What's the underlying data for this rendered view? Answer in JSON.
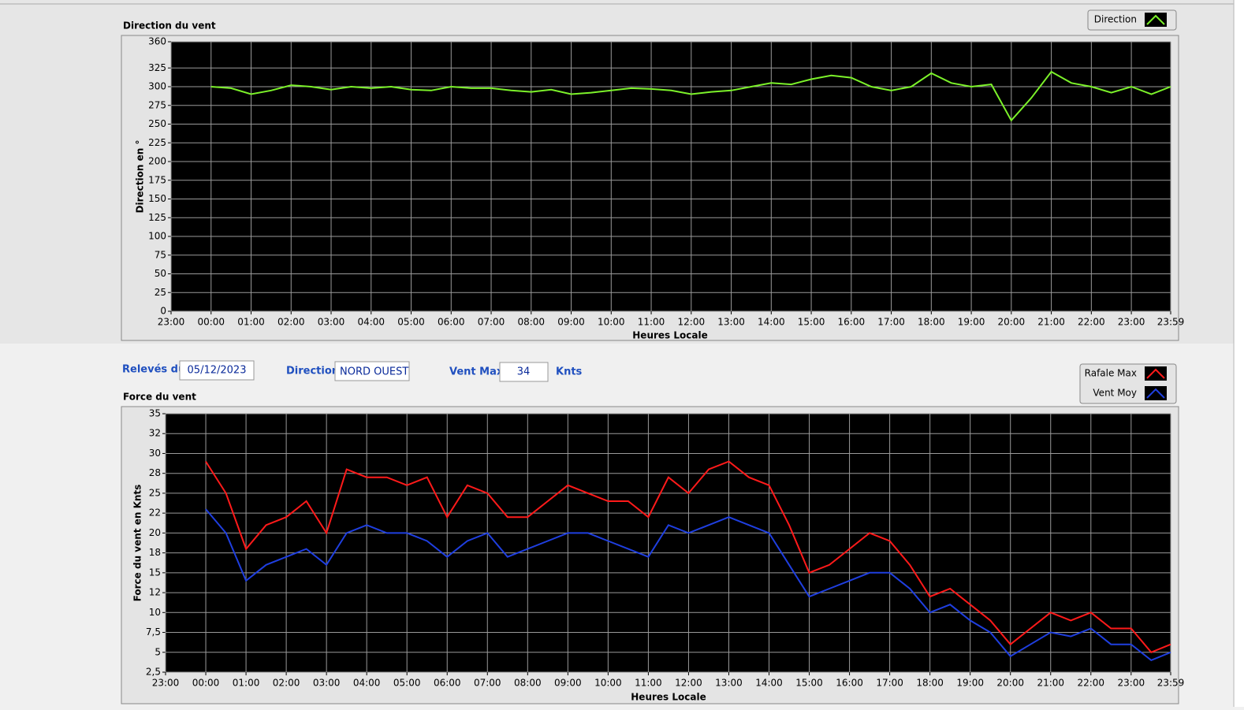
{
  "chart_data": [
    {
      "type": "line",
      "title": "Direction du vent",
      "y_label": "Direction en °",
      "x_label": "Heures Locale",
      "x": [
        0,
        30,
        60,
        90,
        120,
        150,
        180,
        210,
        240,
        270,
        300,
        330,
        360,
        390,
        420,
        450,
        480,
        510,
        540,
        570,
        600,
        630,
        660,
        690,
        720,
        750,
        780,
        810,
        840,
        870,
        900,
        930,
        960,
        990,
        1020,
        1050,
        1080,
        1110,
        1140,
        1170,
        1200,
        1230,
        1260,
        1290,
        1320,
        1350,
        1380,
        1410,
        1439
      ],
      "xlim": [
        -60,
        1439
      ],
      "xticks": [
        {
          "value": -60,
          "label": "23:00"
        },
        {
          "value": 0,
          "label": "00:00"
        },
        {
          "value": 60,
          "label": "01:00"
        },
        {
          "value": 120,
          "label": "02:00"
        },
        {
          "value": 180,
          "label": "03:00"
        },
        {
          "value": 240,
          "label": "04:00"
        },
        {
          "value": 300,
          "label": "05:00"
        },
        {
          "value": 360,
          "label": "06:00"
        },
        {
          "value": 420,
          "label": "07:00"
        },
        {
          "value": 480,
          "label": "08:00"
        },
        {
          "value": 540,
          "label": "09:00"
        },
        {
          "value": 600,
          "label": "10:00"
        },
        {
          "value": 660,
          "label": "11:00"
        },
        {
          "value": 720,
          "label": "12:00"
        },
        {
          "value": 780,
          "label": "13:00"
        },
        {
          "value": 840,
          "label": "14:00"
        },
        {
          "value": 900,
          "label": "15:00"
        },
        {
          "value": 960,
          "label": "16:00"
        },
        {
          "value": 1020,
          "label": "17:00"
        },
        {
          "value": 1080,
          "label": "18:00"
        },
        {
          "value": 1140,
          "label": "19:00"
        },
        {
          "value": 1200,
          "label": "20:00"
        },
        {
          "value": 1260,
          "label": "21:00"
        },
        {
          "value": 1320,
          "label": "22:00"
        },
        {
          "value": 1380,
          "label": "23:00"
        },
        {
          "value": 1439,
          "label": "23:59"
        }
      ],
      "ylim": [
        0,
        360
      ],
      "yticks": [
        0,
        25,
        50,
        75,
        100,
        125,
        150,
        175,
        200,
        225,
        250,
        275,
        300,
        325,
        360
      ],
      "grid": true,
      "series": [
        {
          "name": "Direction",
          "color": "#7cf22a",
          "values": [
            300,
            298,
            290,
            295,
            302,
            300,
            296,
            300,
            298,
            300,
            296,
            295,
            300,
            298,
            298,
            295,
            293,
            296,
            290,
            292,
            295,
            298,
            297,
            295,
            290,
            293,
            295,
            300,
            305,
            303,
            310,
            315,
            312,
            300,
            295,
            300,
            318,
            305,
            300,
            303,
            255,
            285,
            320,
            305,
            300,
            292,
            300,
            290,
            300
          ]
        }
      ]
    },
    {
      "type": "line",
      "title": "Force du vent",
      "y_label": "Force du vent en Knts",
      "x_label": "Heures Locale",
      "x": [
        0,
        30,
        60,
        90,
        120,
        150,
        180,
        210,
        240,
        270,
        300,
        330,
        360,
        390,
        420,
        450,
        480,
        510,
        540,
        570,
        600,
        630,
        660,
        690,
        720,
        750,
        780,
        810,
        840,
        870,
        900,
        930,
        960,
        990,
        1020,
        1050,
        1080,
        1110,
        1140,
        1170,
        1200,
        1230,
        1260,
        1290,
        1320,
        1350,
        1380,
        1410,
        1439
      ],
      "xlim": [
        -60,
        1439
      ],
      "xticks": [
        {
          "value": -60,
          "label": "23:00"
        },
        {
          "value": 0,
          "label": "00:00"
        },
        {
          "value": 60,
          "label": "01:00"
        },
        {
          "value": 120,
          "label": "02:00"
        },
        {
          "value": 180,
          "label": "03:00"
        },
        {
          "value": 240,
          "label": "04:00"
        },
        {
          "value": 300,
          "label": "05:00"
        },
        {
          "value": 360,
          "label": "06:00"
        },
        {
          "value": 420,
          "label": "07:00"
        },
        {
          "value": 480,
          "label": "08:00"
        },
        {
          "value": 540,
          "label": "09:00"
        },
        {
          "value": 600,
          "label": "10:00"
        },
        {
          "value": 660,
          "label": "11:00"
        },
        {
          "value": 720,
          "label": "12:00"
        },
        {
          "value": 780,
          "label": "13:00"
        },
        {
          "value": 840,
          "label": "14:00"
        },
        {
          "value": 900,
          "label": "15:00"
        },
        {
          "value": 960,
          "label": "16:00"
        },
        {
          "value": 1020,
          "label": "17:00"
        },
        {
          "value": 1080,
          "label": "18:00"
        },
        {
          "value": 1140,
          "label": "19:00"
        },
        {
          "value": 1200,
          "label": "20:00"
        },
        {
          "value": 1260,
          "label": "21:00"
        },
        {
          "value": 1320,
          "label": "22:00"
        },
        {
          "value": 1380,
          "label": "23:00"
        },
        {
          "value": 1439,
          "label": "23:59"
        }
      ],
      "ylim": [
        2.5,
        35
      ],
      "yticks": [
        {
          "value": 2.5,
          "label": "2,5"
        },
        5,
        {
          "value": 7.5,
          "label": "7,5"
        },
        10,
        {
          "value": 12.5,
          "label": "12"
        },
        15,
        {
          "value": 17.5,
          "label": "18"
        },
        20,
        {
          "value": 22.5,
          "label": "22"
        },
        25,
        {
          "value": 27.5,
          "label": "28"
        },
        30,
        {
          "value": 32.5,
          "label": "32"
        },
        35
      ],
      "grid": true,
      "series": [
        {
          "name": "Rafale Max",
          "color": "#ff1a1a",
          "values": [
            29,
            25,
            18,
            21,
            22,
            24,
            20,
            28,
            27,
            27,
            26,
            27,
            22,
            26,
            25,
            22,
            22,
            24,
            26,
            25,
            24,
            24,
            22,
            27,
            25,
            28,
            29,
            27,
            26,
            21,
            15,
            16,
            18,
            20,
            19,
            16,
            12,
            13,
            11,
            9,
            6,
            8,
            10,
            9,
            10,
            8,
            8,
            5,
            6
          ]
        },
        {
          "name": "Vent Moy",
          "color": "#1f3fe0",
          "values": [
            23,
            20,
            14,
            16,
            17,
            18,
            16,
            20,
            21,
            20,
            20,
            19,
            17,
            19,
            20,
            17,
            18,
            19,
            20,
            20,
            19,
            18,
            17,
            21,
            20,
            21,
            22,
            21,
            20,
            16,
            12,
            13,
            14,
            15,
            15,
            13,
            10,
            11,
            9,
            7.5,
            4.5,
            6,
            7.5,
            7,
            8,
            6,
            6,
            4,
            5
          ]
        }
      ]
    }
  ],
  "controls": {
    "date": {
      "label": "Relevés du",
      "value": "05/12/2023"
    },
    "direction": {
      "label": "Direction",
      "value": "NORD OUEST"
    },
    "vent_max": {
      "label": "Vent Max",
      "value": 34,
      "unit": "Knts"
    }
  }
}
